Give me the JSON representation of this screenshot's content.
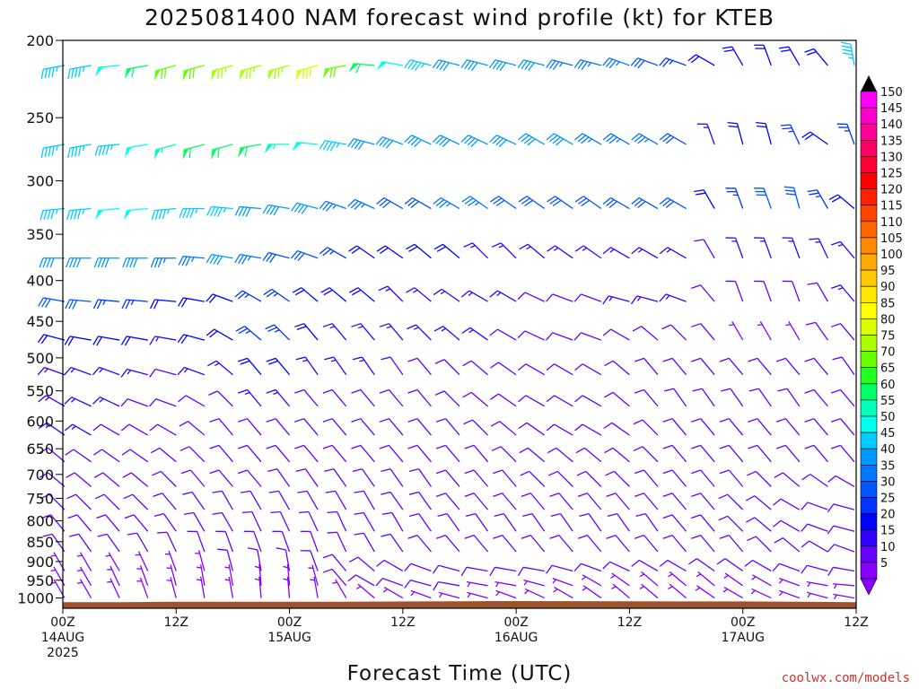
{
  "chart_data": {
    "type": "wind-barb time-height",
    "title": "2025081400 NAM forecast wind profile (kt) for KTEB",
    "xlabel": "Forecast Time (UTC)",
    "credit": "coolwx.com/models",
    "y_scale": "log pressure",
    "ylim": [
      1030,
      200
    ],
    "xlim_hours": [
      0,
      84
    ],
    "y_ticks": [
      200,
      250,
      300,
      350,
      400,
      450,
      500,
      550,
      600,
      650,
      700,
      750,
      800,
      850,
      900,
      950,
      1000
    ],
    "x_ticks": [
      {
        "hour": 0,
        "line1": "00Z",
        "line2": "14AUG",
        "line3": "2025"
      },
      {
        "hour": 12,
        "line1": "12Z",
        "line2": "",
        "line3": ""
      },
      {
        "hour": 24,
        "line1": "00Z",
        "line2": "15AUG",
        "line3": ""
      },
      {
        "hour": 36,
        "line1": "12Z",
        "line2": "",
        "line3": ""
      },
      {
        "hour": 48,
        "line1": "00Z",
        "line2": "16AUG",
        "line3": ""
      },
      {
        "hour": 60,
        "line1": "12Z",
        "line2": "",
        "line3": ""
      },
      {
        "hour": 72,
        "line1": "00Z",
        "line2": "17AUG",
        "line3": ""
      },
      {
        "hour": 84,
        "line1": "12Z",
        "line2": "",
        "line3": ""
      }
    ],
    "hours": [
      0,
      3,
      6,
      9,
      12,
      15,
      18,
      21,
      24,
      27,
      30,
      33,
      36,
      39,
      42,
      45,
      48,
      51,
      54,
      57,
      60,
      63,
      66,
      69,
      72,
      75,
      78,
      81,
      84
    ],
    "levels": [
      {
        "p": 215,
        "dir": [
          260,
          260,
          265,
          260,
          255,
          255,
          255,
          255,
          255,
          255,
          260,
          275,
          280,
          285,
          285,
          285,
          285,
          285,
          285,
          285,
          290,
          290,
          290,
          300,
          330,
          340,
          330,
          320,
          350
        ],
        "spd": [
          45,
          45,
          50,
          60,
          70,
          70,
          75,
          75,
          75,
          80,
          70,
          60,
          50,
          45,
          40,
          40,
          40,
          40,
          35,
          35,
          35,
          30,
          25,
          20,
          20,
          20,
          20,
          20,
          45
        ]
      },
      {
        "p": 270,
        "dir": [
          260,
          260,
          265,
          260,
          255,
          255,
          255,
          260,
          270,
          275,
          280,
          285,
          290,
          295,
          295,
          295,
          295,
          300,
          300,
          300,
          300,
          300,
          300,
          340,
          345,
          345,
          335,
          305,
          340
        ],
        "spd": [
          45,
          45,
          45,
          50,
          55,
          60,
          60,
          60,
          55,
          50,
          45,
          40,
          40,
          40,
          40,
          40,
          40,
          40,
          40,
          35,
          35,
          35,
          30,
          15,
          20,
          20,
          25,
          20,
          25
        ]
      },
      {
        "p": 325,
        "dir": [
          265,
          265,
          265,
          265,
          265,
          270,
          275,
          275,
          280,
          285,
          290,
          295,
          300,
          300,
          300,
          305,
          305,
          305,
          305,
          305,
          300,
          300,
          300,
          330,
          340,
          340,
          345,
          330,
          310
        ],
        "spd": [
          45,
          45,
          50,
          50,
          45,
          45,
          45,
          40,
          40,
          40,
          35,
          35,
          30,
          30,
          35,
          35,
          30,
          30,
          30,
          30,
          30,
          30,
          30,
          20,
          25,
          30,
          30,
          25,
          20
        ]
      },
      {
        "p": 375,
        "dir": [
          270,
          270,
          270,
          270,
          270,
          275,
          280,
          280,
          285,
          290,
          300,
          305,
          305,
          310,
          310,
          315,
          315,
          310,
          305,
          305,
          300,
          300,
          300,
          330,
          340,
          340,
          340,
          335,
          320
        ],
        "spd": [
          40,
          40,
          40,
          40,
          35,
          35,
          40,
          35,
          30,
          30,
          25,
          20,
          20,
          20,
          20,
          15,
          15,
          15,
          15,
          15,
          15,
          15,
          15,
          10,
          15,
          15,
          15,
          15,
          15
        ]
      },
      {
        "p": 425,
        "dir": [
          280,
          275,
          275,
          275,
          275,
          280,
          290,
          300,
          305,
          310,
          310,
          310,
          315,
          310,
          305,
          300,
          300,
          295,
          290,
          290,
          285,
          285,
          290,
          320,
          340,
          340,
          340,
          330,
          320
        ],
        "spd": [
          30,
          30,
          25,
          25,
          20,
          20,
          20,
          25,
          25,
          20,
          20,
          20,
          15,
          15,
          15,
          15,
          15,
          10,
          10,
          10,
          15,
          15,
          15,
          10,
          10,
          10,
          10,
          10,
          15
        ]
      },
      {
        "p": 475,
        "dir": [
          285,
          280,
          280,
          280,
          280,
          285,
          300,
          310,
          315,
          320,
          320,
          320,
          320,
          315,
          310,
          305,
          300,
          295,
          290,
          290,
          300,
          310,
          315,
          320,
          330,
          330,
          330,
          325,
          320
        ],
        "spd": [
          20,
          20,
          20,
          20,
          15,
          20,
          20,
          25,
          25,
          20,
          15,
          15,
          15,
          15,
          15,
          15,
          10,
          10,
          10,
          10,
          10,
          10,
          10,
          10,
          5,
          5,
          5,
          10,
          10
        ]
      },
      {
        "p": 525,
        "dir": [
          290,
          290,
          290,
          285,
          285,
          290,
          310,
          320,
          320,
          325,
          325,
          325,
          325,
          320,
          315,
          310,
          305,
          300,
          300,
          300,
          310,
          320,
          320,
          320,
          320,
          320,
          320,
          320,
          325
        ],
        "spd": [
          15,
          15,
          15,
          15,
          10,
          15,
          15,
          20,
          20,
          15,
          15,
          15,
          10,
          10,
          10,
          10,
          10,
          10,
          10,
          10,
          10,
          10,
          10,
          10,
          10,
          10,
          10,
          10,
          10
        ]
      },
      {
        "p": 575,
        "dir": [
          300,
          295,
          295,
          290,
          290,
          300,
          315,
          320,
          320,
          320,
          320,
          320,
          320,
          320,
          315,
          310,
          305,
          300,
          300,
          300,
          310,
          320,
          325,
          325,
          325,
          325,
          325,
          320,
          320
        ],
        "spd": [
          15,
          15,
          15,
          10,
          10,
          10,
          10,
          15,
          15,
          10,
          10,
          10,
          10,
          10,
          10,
          10,
          10,
          10,
          10,
          10,
          10,
          10,
          10,
          10,
          10,
          10,
          10,
          10,
          10
        ]
      },
      {
        "p": 625,
        "dir": [
          305,
          300,
          300,
          300,
          300,
          310,
          320,
          320,
          320,
          320,
          320,
          320,
          320,
          320,
          320,
          315,
          310,
          305,
          300,
          300,
          305,
          315,
          320,
          320,
          320,
          320,
          320,
          320,
          320
        ],
        "spd": [
          15,
          15,
          10,
          10,
          10,
          10,
          10,
          10,
          10,
          10,
          10,
          10,
          10,
          10,
          10,
          10,
          10,
          10,
          10,
          10,
          10,
          10,
          10,
          10,
          10,
          10,
          10,
          10,
          10
        ]
      },
      {
        "p": 675,
        "dir": [
          310,
          305,
          305,
          305,
          310,
          315,
          320,
          320,
          320,
          320,
          320,
          320,
          320,
          320,
          320,
          320,
          315,
          310,
          310,
          310,
          310,
          315,
          320,
          320,
          320,
          320,
          320,
          320,
          320
        ],
        "spd": [
          10,
          10,
          10,
          10,
          10,
          10,
          10,
          10,
          10,
          10,
          10,
          10,
          10,
          10,
          10,
          10,
          10,
          10,
          10,
          10,
          10,
          10,
          10,
          10,
          10,
          10,
          10,
          10,
          10
        ]
      },
      {
        "p": 725,
        "dir": [
          310,
          310,
          310,
          310,
          315,
          320,
          320,
          320,
          325,
          325,
          325,
          325,
          325,
          325,
          320,
          320,
          320,
          315,
          315,
          315,
          315,
          320,
          320,
          320,
          320,
          315,
          310,
          305,
          300
        ],
        "spd": [
          10,
          10,
          10,
          10,
          10,
          10,
          10,
          10,
          10,
          10,
          10,
          10,
          10,
          10,
          10,
          10,
          10,
          10,
          10,
          10,
          10,
          10,
          10,
          10,
          10,
          10,
          10,
          10,
          10
        ]
      },
      {
        "p": 775,
        "dir": [
          315,
          315,
          315,
          315,
          320,
          325,
          330,
          330,
          330,
          330,
          330,
          330,
          325,
          325,
          320,
          320,
          320,
          320,
          320,
          320,
          320,
          320,
          320,
          320,
          315,
          310,
          300,
          290,
          285
        ],
        "spd": [
          10,
          10,
          10,
          10,
          10,
          10,
          10,
          10,
          10,
          10,
          10,
          10,
          10,
          10,
          10,
          10,
          10,
          10,
          10,
          10,
          10,
          10,
          10,
          10,
          10,
          10,
          10,
          10,
          10
        ]
      },
      {
        "p": 825,
        "dir": [
          320,
          320,
          320,
          320,
          325,
          330,
          330,
          335,
          335,
          335,
          335,
          330,
          330,
          325,
          325,
          325,
          325,
          325,
          325,
          325,
          325,
          325,
          320,
          320,
          315,
          310,
          300,
          290,
          285
        ],
        "spd": [
          10,
          10,
          10,
          10,
          10,
          10,
          10,
          10,
          10,
          10,
          10,
          10,
          10,
          10,
          10,
          10,
          10,
          10,
          10,
          10,
          10,
          10,
          10,
          10,
          10,
          10,
          10,
          10,
          10
        ]
      },
      {
        "p": 875,
        "dir": [
          325,
          325,
          325,
          330,
          335,
          340,
          340,
          340,
          340,
          340,
          335,
          330,
          325,
          320,
          320,
          320,
          320,
          320,
          320,
          320,
          320,
          320,
          320,
          320,
          320,
          315,
          310,
          300,
          290
        ],
        "spd": [
          10,
          10,
          10,
          10,
          10,
          10,
          10,
          10,
          10,
          10,
          10,
          10,
          10,
          10,
          10,
          10,
          10,
          10,
          10,
          10,
          10,
          10,
          10,
          10,
          10,
          10,
          10,
          10,
          10
        ]
      },
      {
        "p": 925,
        "dir": [
          330,
          330,
          330,
          335,
          340,
          345,
          345,
          350,
          350,
          340,
          320,
          310,
          300,
          290,
          285,
          280,
          280,
          280,
          285,
          290,
          295,
          300,
          300,
          305,
          305,
          300,
          290,
          285,
          280
        ],
        "spd": [
          5,
          5,
          5,
          5,
          5,
          5,
          10,
          10,
          10,
          10,
          10,
          10,
          10,
          10,
          10,
          10,
          10,
          10,
          10,
          10,
          10,
          10,
          10,
          10,
          10,
          10,
          10,
          10,
          10
        ]
      },
      {
        "p": 965,
        "dir": [
          330,
          330,
          335,
          340,
          345,
          350,
          350,
          355,
          355,
          345,
          320,
          300,
          290,
          285,
          280,
          280,
          280,
          285,
          290,
          300,
          305,
          310,
          310,
          310,
          305,
          300,
          290,
          280,
          275
        ],
        "spd": [
          5,
          5,
          5,
          5,
          5,
          5,
          5,
          5,
          5,
          5,
          10,
          10,
          10,
          10,
          10,
          5,
          5,
          5,
          5,
          5,
          5,
          5,
          5,
          5,
          5,
          5,
          5,
          5,
          5
        ]
      },
      {
        "p": 1000,
        "dir": [
          330,
          330,
          335,
          340,
          345,
          350,
          350,
          355,
          355,
          350,
          330,
          310,
          300,
          290,
          285,
          285,
          290,
          295,
          300,
          305,
          310,
          310,
          310,
          305,
          300,
          295,
          290,
          285,
          280
        ],
        "spd": [
          5,
          5,
          5,
          5,
          5,
          5,
          5,
          5,
          5,
          5,
          5,
          5,
          5,
          5,
          5,
          5,
          5,
          5,
          5,
          5,
          5,
          5,
          5,
          5,
          5,
          5,
          5,
          5,
          5
        ]
      }
    ],
    "surface_pressure": [
      {
        "hour": 0,
        "p": 1012
      },
      {
        "hour": 6,
        "p": 1012
      },
      {
        "hour": 12,
        "p": 1011
      },
      {
        "hour": 27,
        "p": 1011
      },
      {
        "hour": 37,
        "p": 1010
      },
      {
        "hour": 46,
        "p": 1009
      },
      {
        "hour": 72,
        "p": 1010
      },
      {
        "hour": 84,
        "p": 1012
      }
    ],
    "ground_color": "#a0522d",
    "legend": {
      "labels": [
        "150",
        "145",
        "140",
        "135",
        "130",
        "125",
        "120",
        "115",
        "110",
        "105",
        "100",
        "95",
        "90",
        "85",
        "80",
        "75",
        "70",
        "65",
        "60",
        "55",
        "50",
        "45",
        "40",
        "35",
        "30",
        "25",
        "20",
        "15",
        "10",
        "5"
      ],
      "colors": [
        "#ff00ff",
        "#ff00cc",
        "#ff0099",
        "#ff0066",
        "#ff0033",
        "#ff0000",
        "#ff2200",
        "#ff4400",
        "#ff6600",
        "#ff8800",
        "#ffaa00",
        "#ffc800",
        "#ffe600",
        "#ffff00",
        "#dcff00",
        "#aaff00",
        "#66ff00",
        "#22ff22",
        "#00ff66",
        "#00ffbb",
        "#00ffee",
        "#00ccff",
        "#0099ff",
        "#0077ff",
        "#0055ff",
        "#0033ff",
        "#0000ff",
        "#3300ff",
        "#6600ff",
        "#8800ff"
      ],
      "top_arrow_color": "#000000",
      "bottom_arrow_color": "#8800ff"
    }
  }
}
